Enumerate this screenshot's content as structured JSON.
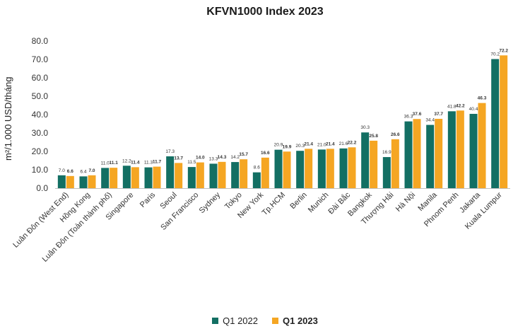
{
  "chart_data": {
    "type": "bar",
    "title": "KFVN1000 Index 2023",
    "xlabel": "",
    "ylabel": "m²/1.000 USD/tháng",
    "ylim": [
      0,
      80
    ],
    "yticks": [
      "0.0",
      "10.0",
      "20.0",
      "30.0",
      "40.0",
      "50.0",
      "60.0",
      "70.0",
      "80.0"
    ],
    "grid": false,
    "legend_position": "bottom",
    "categories": [
      "Luân Đôn (West End)",
      "Hồng Kong",
      "Luân Đôn (Toàn thành phố)",
      "Singapore",
      "Paris",
      "Seoul",
      "San Francisco",
      "Sydney",
      "Tokyo",
      "New York",
      "Tp.HCM",
      "Berlin",
      "Munich",
      "Đài Bắc",
      "Bangkok",
      "Thượng Hải",
      "Hà Nội",
      "Manila",
      "Phnom Penh",
      "Jakarta",
      "Kuala Lumpur"
    ],
    "series": [
      {
        "name": "Q1 2022",
        "color": "#136f63",
        "values": [
          7.0,
          6.4,
          11.0,
          12.2,
          11.3,
          17.3,
          11.5,
          13.3,
          14.2,
          8.6,
          20.9,
          20.3,
          21.0,
          21.6,
          30.3,
          16.9,
          36.3,
          34.4,
          41.8,
          40.4,
          70.2
        ],
        "labels": [
          "7.0",
          "6.4",
          "11.0",
          "12.2",
          "11.3",
          "17.3",
          "11.5",
          "13.3",
          "14.2",
          "8.6",
          "20.9",
          "20.3",
          "21.0",
          "21.6",
          "30.3",
          "16.9",
          "36.3",
          "34.4",
          "41.8",
          "40.4",
          "70.2"
        ]
      },
      {
        "name": "Q1 2023",
        "color": "#f5a623",
        "values": [
          6.6,
          7.0,
          11.1,
          11.4,
          11.7,
          13.7,
          14.0,
          14.3,
          15.7,
          16.6,
          19.9,
          21.4,
          21.4,
          22.2,
          25.8,
          26.6,
          37.6,
          37.7,
          42.2,
          46.3,
          72.2
        ],
        "labels": [
          "6.6",
          "7.0",
          "11.1",
          "11.4",
          "11.7",
          "13.7",
          "14.0",
          "14.3",
          "15.7",
          "16.6",
          "19.9",
          "21.4",
          "21.4",
          "22.2",
          "25.8",
          "26.6",
          "37.6",
          "37.7",
          "42.2",
          "46.3",
          "72.2"
        ]
      }
    ]
  }
}
